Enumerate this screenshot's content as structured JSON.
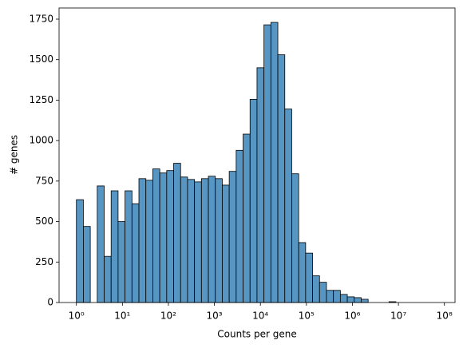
{
  "chart_data": {
    "type": "histogram",
    "xlabel": "Counts per gene",
    "ylabel": "# genes",
    "bins": [
      1,
      1.416,
      2.004,
      2.838,
      4.018,
      5.689,
      8.054,
      11.4,
      16.14,
      22.86,
      32.36,
      45.81,
      64.86,
      91.83,
      130,
      184.1,
      260.6,
      369,
      522.4,
      739.6,
      1047,
      1483,
      2099,
      2972,
      4207,
      5957,
      8433,
      11940,
      16900,
      23930,
      33880,
      47970,
      67920,
      96160,
      136100,
      192800,
      272900,
      386400,
      547000,
      774500,
      1096000,
      1552000,
      2198000,
      3112000,
      4406000,
      6237000,
      8831000,
      12500000,
      17700000,
      25060000,
      35480000
    ],
    "values": [
      635,
      470,
      0,
      720,
      285,
      690,
      500,
      690,
      610,
      765,
      755,
      825,
      800,
      815,
      860,
      775,
      760,
      745,
      765,
      780,
      765,
      725,
      810,
      940,
      1040,
      1255,
      1450,
      1715,
      1730,
      1530,
      1195,
      795,
      370,
      305,
      165,
      125,
      75,
      75,
      50,
      35,
      30,
      20,
      0,
      0,
      0,
      5,
      0,
      0,
      0,
      0
    ],
    "color": "#5795c3",
    "edgecolor": "#000000",
    "xscale": "log",
    "xlim": [
      0.42,
      170000000
    ],
    "xticks": [
      {
        "value": 1,
        "label": "10⁰"
      },
      {
        "value": 10,
        "label": "10¹"
      },
      {
        "value": 100,
        "label": "10²"
      },
      {
        "value": 1000,
        "label": "10³"
      },
      {
        "value": 10000,
        "label": "10⁴"
      },
      {
        "value": 100000,
        "label": "10⁵"
      },
      {
        "value": 1000000,
        "label": "10⁶"
      },
      {
        "value": 10000000,
        "label": "10⁷"
      },
      {
        "value": 100000000,
        "label": "10⁸"
      }
    ],
    "ylim": [
      0,
      1819
    ],
    "yticks": [
      0,
      250,
      500,
      750,
      1000,
      1250,
      1500,
      1750
    ]
  }
}
